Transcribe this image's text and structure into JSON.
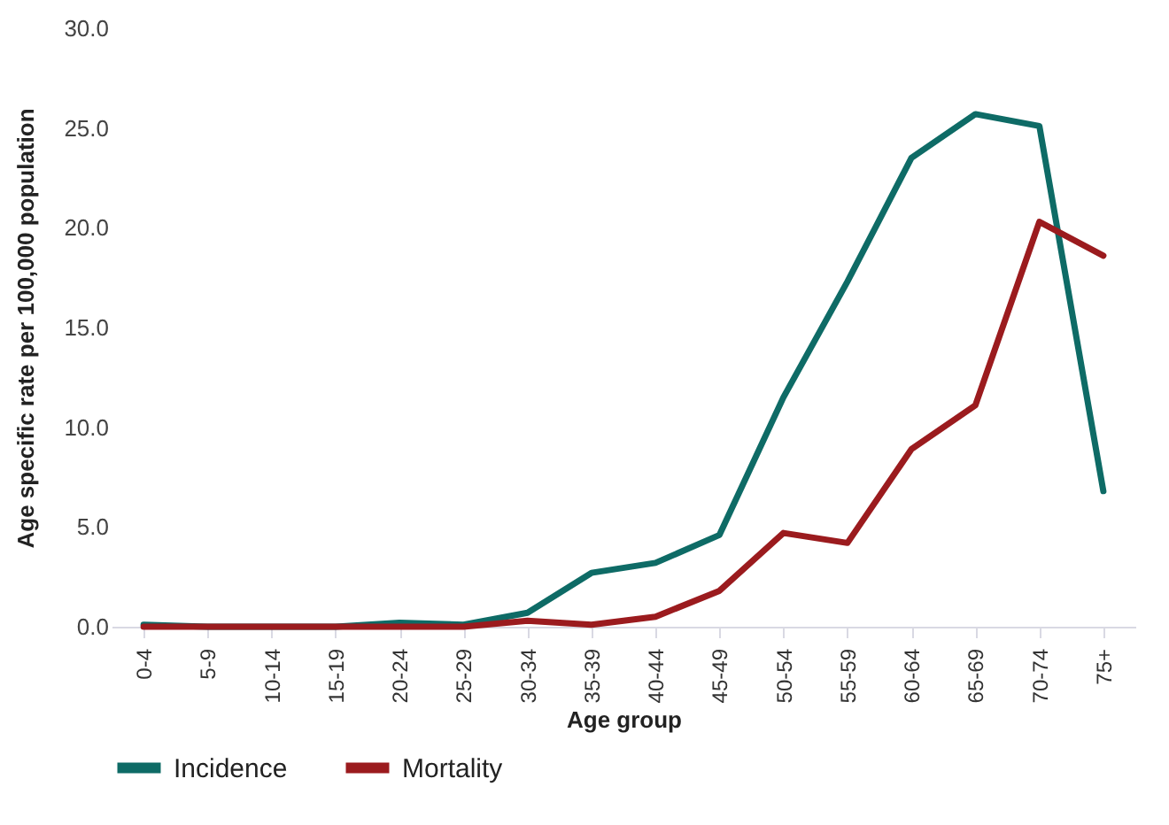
{
  "chart_data": {
    "type": "line",
    "xlabel": "Age group",
    "ylabel": "Age specific rate per 100,000 population",
    "categories": [
      "0-4",
      "5-9",
      "10-14",
      "15-19",
      "20-24",
      "25-29",
      "30-34",
      "35-39",
      "40-44",
      "45-49",
      "50-54",
      "55-59",
      "60-64",
      "65-69",
      "70-74",
      "75+"
    ],
    "series": [
      {
        "name": "Incidence",
        "color": "#0e6b66",
        "values": [
          0.1,
          0,
          0,
          0,
          0.2,
          0.1,
          0.7,
          2.7,
          3.2,
          4.6,
          11.5,
          17.3,
          23.5,
          25.7,
          25.1,
          6.8
        ]
      },
      {
        "name": "Mortality",
        "color": "#9b1b1e",
        "values": [
          0,
          0,
          0,
          0,
          0,
          0,
          0.3,
          0.1,
          0.5,
          1.8,
          4.7,
          4.2,
          8.9,
          11.1,
          20.3,
          18.6
        ]
      }
    ],
    "ylim": [
      0,
      30
    ],
    "yticks": [
      {
        "value": 0,
        "label": "0.0"
      },
      {
        "value": 5,
        "label": "5.0"
      },
      {
        "value": 10,
        "label": "10.0"
      },
      {
        "value": 15,
        "label": "15.0"
      },
      {
        "value": 20,
        "label": "20.0"
      },
      {
        "value": 25,
        "label": "25.0"
      },
      {
        "value": 30,
        "label": "30.0"
      }
    ],
    "grid": false,
    "legend": "bottom",
    "marker": "none",
    "line_style": "solid"
  }
}
